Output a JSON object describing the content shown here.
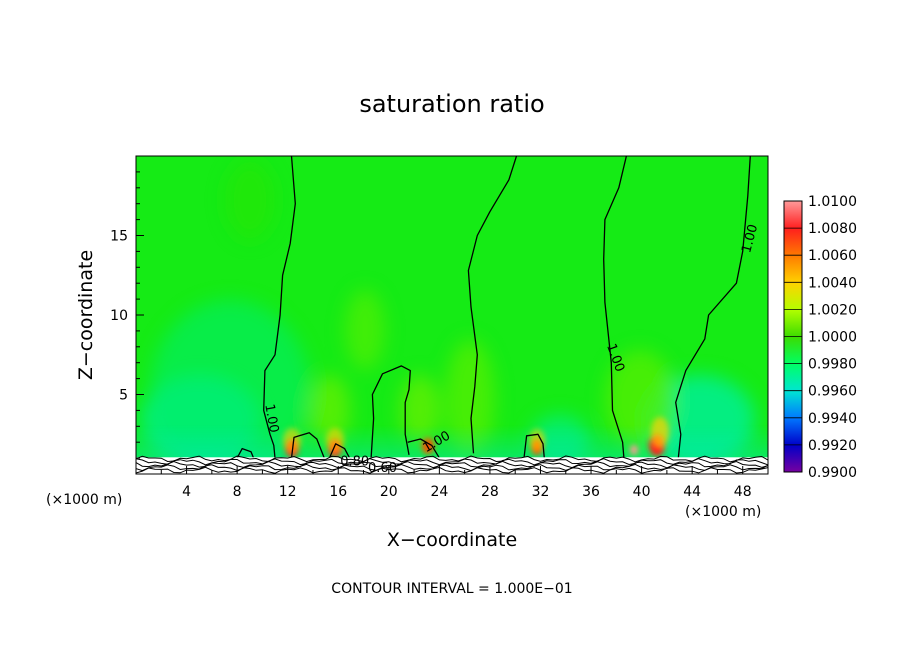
{
  "chart_data": {
    "type": "heatmap",
    "title": "saturation ratio",
    "xlabel": "X−coordinate",
    "ylabel": "Z−coordinate",
    "x_unit": "(×1000 m)",
    "footer": "CONTOUR INTERVAL = 1.000E−01",
    "xlim": [
      0,
      50
    ],
    "ylim": [
      0,
      20
    ],
    "x_ticks": [
      4,
      8,
      12,
      16,
      20,
      24,
      28,
      32,
      36,
      40,
      44,
      48
    ],
    "y_ticks": [
      5,
      10,
      15
    ],
    "colorbar": {
      "levels": [
        "1.0100",
        "1.0080",
        "1.0060",
        "1.0040",
        "1.0020",
        "1.0000",
        "0.9980",
        "0.9960",
        "0.9940",
        "0.9920",
        "0.9900"
      ],
      "colors": [
        "#ff9a9a",
        "#ff1e1e",
        "#ff7a00",
        "#ffd200",
        "#b4ff00",
        "#3cdc00",
        "#00ff64",
        "#00e6d2",
        "#0078ff",
        "#0000c8",
        "#7800a0"
      ]
    },
    "background_color": "#15eb15",
    "contour_labels": [
      {
        "text": "1.00",
        "x": 10.7,
        "y": 3.5,
        "rotate": 80
      },
      {
        "text": "1.00",
        "x": 23.8,
        "y": 2.0,
        "rotate": -30
      },
      {
        "text": "1.00",
        "x": 37.9,
        "y": 7.3,
        "rotate": 70
      },
      {
        "text": "1.00",
        "x": 48.6,
        "y": 14.8,
        "rotate": -75
      },
      {
        "text": "0.80",
        "x": 17.3,
        "y": 0.75,
        "rotate": 0
      },
      {
        "text": "0.60",
        "x": 19.5,
        "y": 0.35,
        "rotate": 0
      }
    ],
    "contours": [
      [
        [
          12.3,
          20
        ],
        [
          12.6,
          17
        ],
        [
          12.2,
          14.5
        ],
        [
          11.6,
          12.5
        ],
        [
          11.4,
          10
        ],
        [
          11.0,
          7.5
        ],
        [
          10.2,
          6.5
        ],
        [
          10.1,
          4
        ],
        [
          10.6,
          2.5
        ],
        [
          10.9,
          1.8
        ],
        [
          11.0,
          1.0
        ]
      ],
      [
        [
          30.1,
          20
        ],
        [
          29.5,
          18.5
        ],
        [
          28.0,
          16.5
        ],
        [
          27.0,
          15
        ],
        [
          26.3,
          12.8
        ],
        [
          26.5,
          10.5
        ],
        [
          27.0,
          7.5
        ],
        [
          26.8,
          5.5
        ],
        [
          26.5,
          3.5
        ],
        [
          26.7,
          1.3
        ]
      ],
      [
        [
          24.0,
          1.0
        ],
        [
          23.4,
          1.8
        ],
        [
          22.5,
          2.2
        ],
        [
          21.5,
          2.0
        ]
      ],
      [
        [
          38.8,
          20
        ],
        [
          38.2,
          18
        ],
        [
          37.1,
          16
        ],
        [
          37.0,
          13.5
        ],
        [
          37.1,
          10.8
        ],
        [
          37.6,
          7.0
        ],
        [
          37.7,
          4.0
        ],
        [
          38.5,
          2.0
        ],
        [
          38.6,
          1.0
        ]
      ],
      [
        [
          48.6,
          20
        ],
        [
          48.4,
          17.5
        ],
        [
          48.0,
          14
        ],
        [
          47.5,
          12
        ],
        [
          45.3,
          10
        ],
        [
          45.0,
          8.5
        ],
        [
          43.5,
          6.5
        ],
        [
          42.7,
          4.5
        ],
        [
          43.1,
          2.5
        ],
        [
          42.9,
          1.0
        ]
      ],
      [
        [
          18.6,
          1.0
        ],
        [
          18.8,
          3.5
        ],
        [
          18.7,
          5.0
        ],
        [
          19.5,
          6.3
        ],
        [
          21.0,
          6.8
        ],
        [
          21.7,
          6.5
        ],
        [
          21.6,
          5.3
        ],
        [
          21.3,
          4.5
        ],
        [
          21.3,
          2.5
        ],
        [
          21.6,
          1.2
        ]
      ],
      [
        [
          12.3,
          1.0
        ],
        [
          12.5,
          2.3
        ],
        [
          13.7,
          2.6
        ],
        [
          14.3,
          2.2
        ],
        [
          14.9,
          1.0
        ]
      ],
      [
        [
          15.3,
          1.0
        ],
        [
          15.8,
          1.9
        ],
        [
          16.5,
          1.6
        ],
        [
          16.9,
          1.0
        ]
      ],
      [
        [
          30.7,
          1.0
        ],
        [
          30.9,
          2.4
        ],
        [
          31.8,
          2.5
        ],
        [
          32.2,
          1.9
        ],
        [
          32.3,
          1.0
        ]
      ],
      [
        [
          8.0,
          1.0
        ],
        [
          8.4,
          1.6
        ],
        [
          9.1,
          1.4
        ],
        [
          9.3,
          1.0
        ]
      ]
    ]
  }
}
